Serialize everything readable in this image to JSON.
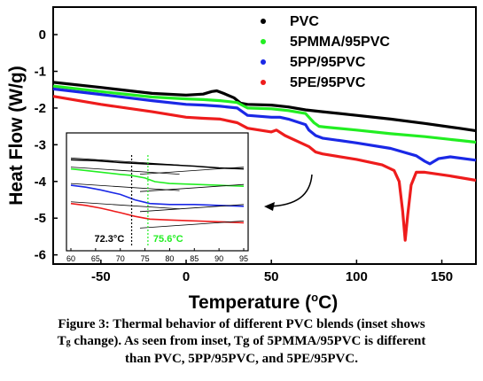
{
  "chart_data": {
    "type": "line",
    "xlabel": "Temperature (",
    "xlabel_sup": "o",
    "xlabel_tail": "C)",
    "ylabel": "Heat Flow (W/g)",
    "xlim": [
      -78,
      170
    ],
    "ylim": [
      -6.25,
      0.75
    ],
    "x_ticks": [
      -50,
      0,
      50,
      100,
      150
    ],
    "x_tick_labels": [
      "-50",
      "0",
      "50",
      "100",
      "150"
    ],
    "y_ticks": [
      0,
      -1,
      -2,
      -3,
      -4,
      -5,
      -6
    ],
    "y_tick_labels": [
      "0",
      "-1",
      "-2",
      "-3",
      "-4",
      "-5",
      "-6"
    ],
    "legend_position": "top-right",
    "series": [
      {
        "name": "PVC",
        "color": "#000000",
        "x": [
          -78,
          -50,
          -20,
          0,
          10,
          15,
          18,
          22,
          28,
          32,
          36,
          50,
          60,
          70,
          80,
          100,
          120,
          140,
          160,
          170
        ],
        "y": [
          -1.3,
          -1.44,
          -1.6,
          -1.65,
          -1.62,
          -1.55,
          -1.53,
          -1.6,
          -1.72,
          -1.87,
          -1.9,
          -1.92,
          -1.97,
          -2.05,
          -2.1,
          -2.2,
          -2.3,
          -2.42,
          -2.55,
          -2.62
        ]
      },
      {
        "name": "5PMMA/95PVC",
        "color": "#22ee22",
        "x": [
          -78,
          -50,
          -20,
          0,
          10,
          20,
          30,
          36,
          50,
          60,
          70,
          75,
          78,
          82,
          100,
          120,
          140,
          160,
          170
        ],
        "y": [
          -1.4,
          -1.55,
          -1.7,
          -1.75,
          -1.77,
          -1.8,
          -1.85,
          -2.0,
          -2.02,
          -2.07,
          -2.15,
          -2.4,
          -2.5,
          -2.52,
          -2.6,
          -2.7,
          -2.78,
          -2.88,
          -2.93
        ]
      },
      {
        "name": "5PP/95PVC",
        "color": "#1a28e6",
        "x": [
          -78,
          -50,
          -20,
          0,
          10,
          20,
          30,
          36,
          50,
          55,
          60,
          70,
          72,
          76,
          80,
          100,
          120,
          135,
          140,
          143,
          148,
          155,
          170
        ],
        "y": [
          -1.48,
          -1.63,
          -1.8,
          -1.9,
          -1.92,
          -1.95,
          -2.0,
          -2.2,
          -2.25,
          -2.25,
          -2.3,
          -2.45,
          -2.6,
          -2.75,
          -2.82,
          -2.95,
          -3.1,
          -3.3,
          -3.45,
          -3.52,
          -3.38,
          -3.33,
          -3.42
        ]
      },
      {
        "name": "5PE/95PVC",
        "color": "#ee1c1c",
        "x": [
          -78,
          -50,
          -20,
          0,
          10,
          20,
          30,
          36,
          50,
          53,
          58,
          65,
          72,
          76,
          80,
          100,
          115,
          122,
          125,
          127,
          128.5,
          130,
          132,
          135,
          140,
          155,
          170
        ],
        "y": [
          -1.68,
          -1.9,
          -2.1,
          -2.25,
          -2.28,
          -2.3,
          -2.4,
          -2.55,
          -2.65,
          -2.6,
          -2.75,
          -2.9,
          -3.05,
          -3.2,
          -3.25,
          -3.4,
          -3.55,
          -3.7,
          -4.0,
          -4.8,
          -5.6,
          -4.9,
          -4.1,
          -3.75,
          -3.75,
          -3.85,
          -3.97
        ]
      }
    ],
    "inset": {
      "xlim": [
        60,
        95
      ],
      "x_ticks": [
        60,
        65,
        70,
        75,
        80,
        85,
        90,
        95
      ],
      "x_tick_labels": [
        "60",
        "65",
        "70",
        "75",
        "80",
        "85",
        "90",
        "95"
      ],
      "annotations": [
        {
          "text": "72.3°C",
          "x": 72.3,
          "color": "#000000"
        },
        {
          "text": "75.6°C",
          "x": 75.6,
          "color": "#22ee22"
        }
      ],
      "curves": [
        {
          "color": "#000000",
          "x": [
            60,
            65,
            70,
            75,
            80,
            85,
            90,
            95
          ],
          "y": [
            0.1,
            0.11,
            0.13,
            0.145,
            0.155,
            0.17,
            0.19,
            0.2
          ]
        },
        {
          "color": "#22ee22",
          "x": [
            60,
            65,
            70,
            72,
            75,
            77,
            80,
            85,
            90,
            95
          ],
          "y": [
            0.2,
            0.23,
            0.26,
            0.27,
            0.3,
            0.34,
            0.36,
            0.37,
            0.38,
            0.39
          ]
        },
        {
          "color": "#1a28e6",
          "x": [
            60,
            63,
            66,
            70,
            73,
            76,
            80,
            85,
            90,
            95
          ],
          "y": [
            0.38,
            0.4,
            0.43,
            0.48,
            0.54,
            0.58,
            0.59,
            0.59,
            0.6,
            0.61
          ]
        },
        {
          "color": "#ee1c1c",
          "x": [
            60,
            63,
            66,
            70,
            73,
            76,
            80,
            85,
            90,
            95
          ],
          "y": [
            0.58,
            0.6,
            0.63,
            0.68,
            0.72,
            0.75,
            0.76,
            0.77,
            0.78,
            0.79
          ]
        }
      ]
    }
  },
  "caption": {
    "line1a": "Figure 3: Thermal behavior of different PVC blends (inset shows",
    "line2_t": "T",
    "line2_sub": "g",
    "line2_rest": " change). As seen from inset, Tg of 5PMMA/95PVC is different",
    "line3": "than PVC, 5PP/95PVC, and 5PE/95PVC."
  }
}
